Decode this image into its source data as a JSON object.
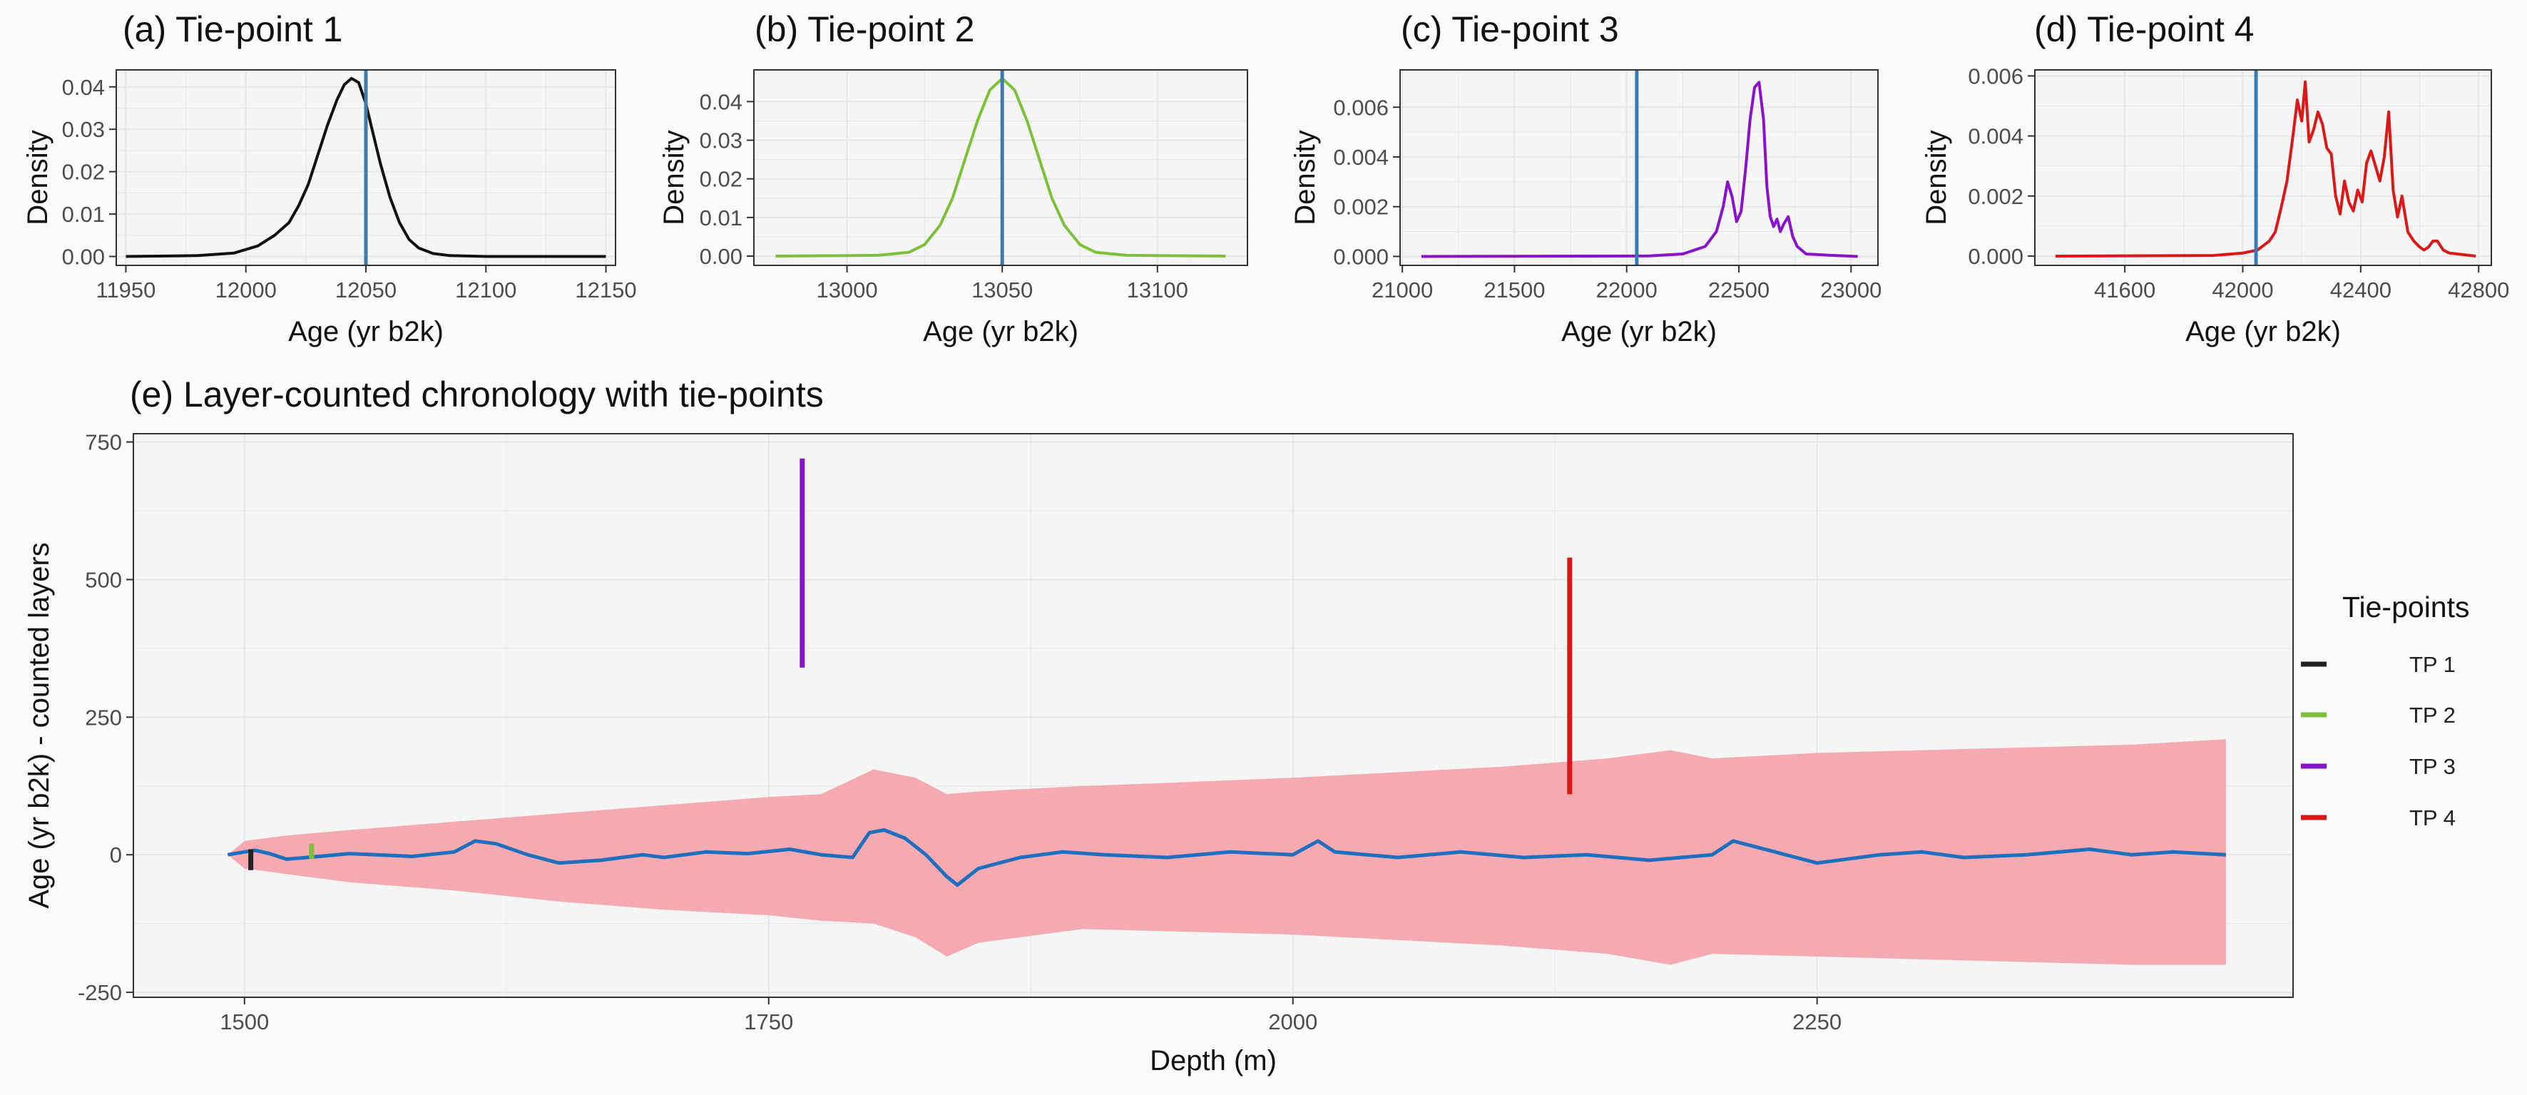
{
  "figure": {
    "background": "#fafafa",
    "panel_bg": "#f5f5f5",
    "grid_color": "#e6e6e6",
    "vline_color": "#3a7bb0"
  },
  "chart_data": [
    {
      "id": "a",
      "type": "line",
      "title": "(a) Tie-point 1",
      "xlabel": "Age (yr b2k)",
      "ylabel": "Density",
      "xlim": [
        11946,
        12154
      ],
      "ylim": [
        -0.0021,
        0.044
      ],
      "xticks": [
        11950,
        12000,
        12050,
        12100,
        12150
      ],
      "xtick_labels": [
        "11950",
        "12000",
        "12050",
        "12100",
        "12150"
      ],
      "yticks": [
        0,
        0.01,
        0.02,
        0.03,
        0.04
      ],
      "ytick_labels": [
        "0.00",
        "0.01",
        "0.02",
        "0.03",
        "0.04"
      ],
      "grid": true,
      "color": "#111111",
      "vline": 12050,
      "series": [
        {
          "x": [
            11950,
            11980,
            11995,
            12005,
            12012,
            12018,
            12022,
            12026,
            12030,
            12034,
            12038,
            12041,
            12044,
            12047,
            12050,
            12053,
            12056,
            12060,
            12064,
            12068,
            12072,
            12078,
            12085,
            12100,
            12150
          ],
          "y": [
            0,
            0.0002,
            0.0008,
            0.0025,
            0.005,
            0.008,
            0.012,
            0.017,
            0.024,
            0.031,
            0.037,
            0.0405,
            0.042,
            0.041,
            0.036,
            0.029,
            0.022,
            0.014,
            0.008,
            0.004,
            0.002,
            0.0007,
            0.0002,
            0,
            0
          ]
        }
      ]
    },
    {
      "id": "b",
      "type": "line",
      "title": "(b) Tie-point 2",
      "xlabel": "Age (yr b2k)",
      "ylabel": "Density",
      "xlim": [
        12970,
        13129
      ],
      "ylim": [
        -0.0024,
        0.0482
      ],
      "xticks": [
        13000,
        13050,
        13100
      ],
      "xtick_labels": [
        "13000",
        "13050",
        "13100"
      ],
      "yticks": [
        0,
        0.01,
        0.02,
        0.03,
        0.04
      ],
      "ytick_labels": [
        "0.00",
        "0.01",
        "0.02",
        "0.03",
        "0.04"
      ],
      "grid": true,
      "color": "#7dc13a",
      "vline": 13050,
      "series": [
        {
          "x": [
            12977,
            13010,
            13020,
            13025,
            13030,
            13034,
            13038,
            13042,
            13046,
            13050,
            13054,
            13058,
            13062,
            13066,
            13070,
            13075,
            13080,
            13090,
            13122
          ],
          "y": [
            0,
            0.0002,
            0.001,
            0.003,
            0.008,
            0.015,
            0.025,
            0.035,
            0.043,
            0.046,
            0.043,
            0.035,
            0.025,
            0.015,
            0.008,
            0.003,
            0.001,
            0.0002,
            0
          ]
        }
      ]
    },
    {
      "id": "c",
      "type": "line",
      "title": "(c) Tie-point 3",
      "xlabel": "Age (yr b2k)",
      "ylabel": "Density",
      "xlim": [
        20990,
        23120
      ],
      "ylim": [
        -0.00036,
        0.0075
      ],
      "xticks": [
        21000,
        21500,
        22000,
        22500,
        23000
      ],
      "xtick_labels": [
        "21000",
        "21500",
        "22000",
        "22500",
        "23000"
      ],
      "yticks": [
        0,
        0.002,
        0.004,
        0.006
      ],
      "ytick_labels": [
        "0.000",
        "0.002",
        "0.004",
        "0.006"
      ],
      "grid": true,
      "color": "#8a12c9",
      "vline": 22045,
      "series": [
        {
          "x": [
            21085,
            22100,
            22250,
            22350,
            22400,
            22430,
            22450,
            22470,
            22490,
            22510,
            22530,
            22550,
            22570,
            22590,
            22610,
            22625,
            22640,
            22655,
            22670,
            22685,
            22700,
            22720,
            22740,
            22760,
            22800,
            22900,
            23030
          ],
          "y": [
            0,
            2e-05,
            0.0001,
            0.0004,
            0.001,
            0.002,
            0.003,
            0.0024,
            0.0014,
            0.0018,
            0.0035,
            0.0055,
            0.0068,
            0.007,
            0.0055,
            0.0028,
            0.0016,
            0.0012,
            0.0015,
            0.001,
            0.0013,
            0.0016,
            0.0008,
            0.0004,
            0.0001,
            5e-05,
            0
          ]
        }
      ]
    },
    {
      "id": "d",
      "type": "line",
      "title": "(d) Tie-point 4",
      "xlabel": "Age (yr b2k)",
      "ylabel": "Density",
      "xlim": [
        41295,
        42843
      ],
      "ylim": [
        -0.00031,
        0.0062
      ],
      "xticks": [
        41600,
        42000,
        42400,
        42800
      ],
      "xtick_labels": [
        "41600",
        "42000",
        "42400",
        "42800"
      ],
      "yticks": [
        0,
        0.002,
        0.004,
        0.006
      ],
      "ytick_labels": [
        "0.000",
        "0.002",
        "0.004",
        "0.006"
      ],
      "grid": true,
      "color": "#dc1717",
      "vline": 42045,
      "series": [
        {
          "x": [
            41365,
            41900,
            42000,
            42050,
            42090,
            42110,
            42130,
            42150,
            42170,
            42185,
            42200,
            42212,
            42225,
            42240,
            42255,
            42270,
            42285,
            42300,
            42315,
            42330,
            42345,
            42360,
            42375,
            42390,
            42405,
            42420,
            42435,
            42450,
            42465,
            42480,
            42495,
            42510,
            42525,
            42540,
            42560,
            42580,
            42600,
            42615,
            42630,
            42645,
            42660,
            42680,
            42700,
            42790
          ],
          "y": [
            0,
            2e-05,
            0.0001,
            0.0002,
            0.0005,
            0.0008,
            0.0016,
            0.0025,
            0.004,
            0.0052,
            0.0045,
            0.0058,
            0.0038,
            0.0042,
            0.0048,
            0.0044,
            0.0036,
            0.0034,
            0.002,
            0.0014,
            0.0025,
            0.0018,
            0.0015,
            0.0022,
            0.0018,
            0.0031,
            0.0035,
            0.003,
            0.0025,
            0.0033,
            0.0048,
            0.0022,
            0.0013,
            0.002,
            0.0008,
            0.0005,
            0.0003,
            0.0002,
            0.0003,
            0.0005,
            0.0005,
            0.0002,
            0.0001,
            0
          ]
        }
      ]
    },
    {
      "id": "e",
      "type": "area",
      "title": "(e) Layer-counted chronology with tie-points",
      "xlabel": "Depth (m)",
      "ylabel": "Age (yr b2k) - counted layers",
      "xlim": [
        1447,
        2477
      ],
      "ylim": [
        -259,
        765
      ],
      "xticks": [
        1500,
        1750,
        2000,
        2250
      ],
      "xtick_labels": [
        "1500",
        "1750",
        "2000",
        "2250"
      ],
      "yticks": [
        -250,
        0,
        250,
        500,
        750
      ],
      "ytick_labels": [
        "-250",
        "0",
        "250",
        "500",
        "750"
      ],
      "grid": true,
      "band": {
        "color": "#f4aab0",
        "depth": [
          1492,
          1500,
          1520,
          1550,
          1600,
          1650,
          1700,
          1750,
          1775,
          1800,
          1820,
          1835,
          1850,
          1900,
          1950,
          2000,
          2050,
          2100,
          2150,
          2180,
          2200,
          2250,
          2300,
          2350,
          2400,
          2445
        ],
        "upper": [
          0,
          25,
          35,
          45,
          60,
          75,
          90,
          105,
          110,
          155,
          140,
          110,
          115,
          125,
          132,
          140,
          150,
          160,
          175,
          190,
          175,
          185,
          190,
          195,
          200,
          210
        ],
        "lower": [
          0,
          -25,
          -35,
          -50,
          -65,
          -85,
          -100,
          -110,
          -120,
          -125,
          -150,
          -185,
          -160,
          -135,
          -140,
          -145,
          -155,
          -165,
          -180,
          -200,
          -180,
          -185,
          -190,
          -195,
          -200,
          -200
        ]
      },
      "line": {
        "color": "#1f6fbf",
        "depth": [
          1492,
          1500,
          1505,
          1512,
          1520,
          1530,
          1550,
          1580,
          1600,
          1610,
          1620,
          1635,
          1650,
          1670,
          1690,
          1700,
          1720,
          1740,
          1760,
          1775,
          1790,
          1798,
          1805,
          1815,
          1825,
          1835,
          1840,
          1850,
          1870,
          1890,
          1910,
          1940,
          1970,
          2000,
          2012,
          2020,
          2050,
          2080,
          2110,
          2140,
          2170,
          2200,
          2210,
          2230,
          2250,
          2280,
          2300,
          2320,
          2350,
          2380,
          2400,
          2420,
          2445
        ],
        "values": [
          0,
          5,
          8,
          2,
          -8,
          -5,
          2,
          -3,
          5,
          25,
          20,
          0,
          -15,
          -10,
          0,
          -5,
          5,
          2,
          10,
          0,
          -5,
          40,
          45,
          30,
          0,
          -40,
          -55,
          -25,
          -5,
          5,
          0,
          -5,
          5,
          0,
          25,
          5,
          -5,
          5,
          -5,
          0,
          -10,
          0,
          25,
          5,
          -15,
          0,
          5,
          -5,
          0,
          10,
          0,
          5,
          0
        ]
      },
      "tie_segments": [
        {
          "name": "TP 1",
          "color": "#222222",
          "depth": 1503,
          "from": -28,
          "to": 10
        },
        {
          "name": "TP 2",
          "color": "#7dc13a",
          "depth": 1532,
          "from": -8,
          "to": 20
        },
        {
          "name": "TP 3",
          "color": "#8a12c9",
          "depth": 1766,
          "from": 340,
          "to": 720
        },
        {
          "name": "TP 4",
          "color": "#dc1717",
          "depth": 2132,
          "from": 110,
          "to": 540
        }
      ]
    }
  ],
  "legend": {
    "title": "Tie-points",
    "items": [
      {
        "label": "TP 1",
        "color": "#222222"
      },
      {
        "label": "TP 2",
        "color": "#7dc13a"
      },
      {
        "label": "TP 3",
        "color": "#8a12c9"
      },
      {
        "label": "TP 4",
        "color": "#dc1717"
      }
    ]
  }
}
